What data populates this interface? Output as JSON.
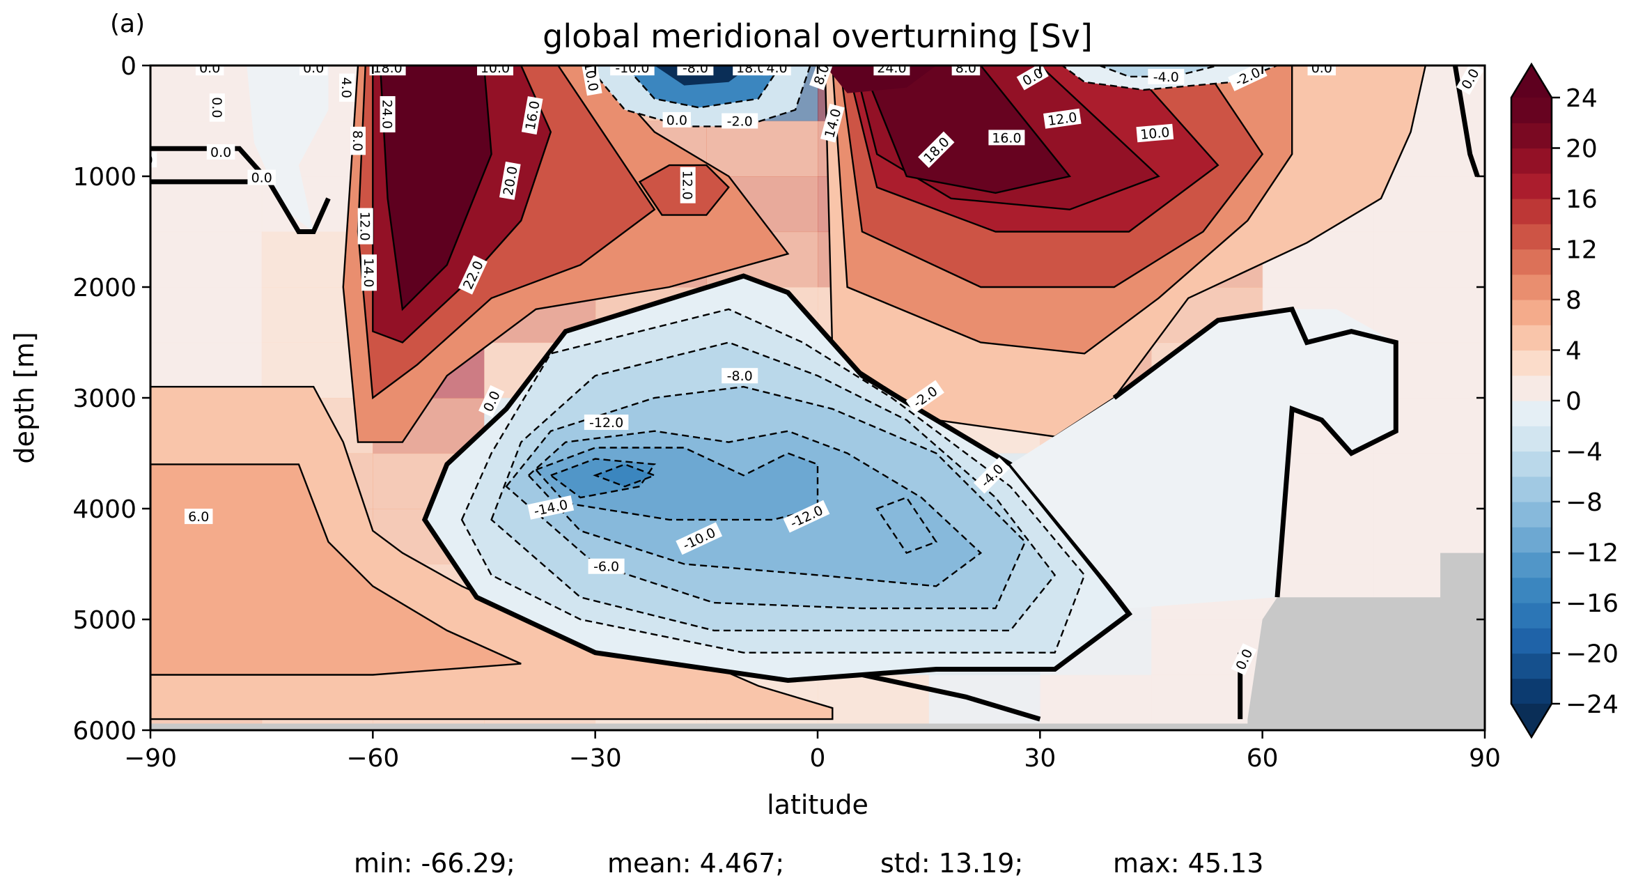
{
  "panel_label": "(a)",
  "stats": {
    "min": "min: -66.29;",
    "mean": "mean: 4.467;",
    "std": "std: 13.19;",
    "max": "max: 45.13"
  },
  "chart_data": {
    "type": "heatmap",
    "subtype": "filled-contour",
    "title": "global meridional overturning [Sv]",
    "xlabel": "latitude",
    "ylabel": "depth [m]",
    "xlim": [
      -90,
      90
    ],
    "ylim": [
      6000,
      0
    ],
    "xticks": [
      -90,
      -60,
      -30,
      0,
      30,
      60,
      90
    ],
    "xtick_labels": [
      "−90",
      "−60",
      "−30",
      "0",
      "30",
      "60",
      "90"
    ],
    "yticks": [
      0,
      1000,
      2000,
      3000,
      4000,
      5000,
      6000
    ],
    "ytick_labels": [
      "0",
      "1000",
      "2000",
      "3000",
      "4000",
      "5000",
      "6000"
    ],
    "colormap": "RdBu_r",
    "colorbar": {
      "range": [
        -24,
        24
      ],
      "step": 2,
      "extend": "both",
      "ticks": [
        24,
        20,
        16,
        12,
        8,
        4,
        0,
        -4,
        -8,
        -12,
        -16,
        -20,
        -24
      ],
      "tick_labels": [
        "24",
        "20",
        "16",
        "12",
        "8",
        "4",
        "0",
        "−4",
        "−8",
        "−12",
        "−16",
        "−20",
        "−24"
      ],
      "level_colors": [
        "#0c3b70",
        "#15508d",
        "#1f63a8",
        "#2c76b6",
        "#3b86bf",
        "#5196c8",
        "#6da8d2",
        "#87b9db",
        "#a1c9e3",
        "#bad8ea",
        "#d2e5f0",
        "#e5eff5",
        "#f7eae5",
        "#fbdcca",
        "#f9c5aa",
        "#f4ab8b",
        "#e98e6f",
        "#dc7158",
        "#cd5445",
        "#bd3736",
        "#ab1d2d",
        "#931126",
        "#7a0922",
        "#670320"
      ],
      "under_color": "#0a2e57",
      "over_color": "#5e001f"
    },
    "land_color": "#c8c8c8",
    "cells_x": [
      -90,
      -75,
      -60,
      -45,
      -30,
      -15,
      0,
      15,
      30,
      45,
      60,
      75,
      90
    ],
    "cells_depth": [
      0,
      500,
      1000,
      1500,
      2000,
      2500,
      3000,
      3500,
      4000,
      4500,
      5000,
      5500,
      6000
    ],
    "cells": [
      [
        0,
        0,
        24,
        24,
        6,
        -22,
        24,
        22,
        16,
        -2,
        0,
        0
      ],
      [
        0,
        0,
        24,
        18,
        8,
        8,
        10,
        20,
        16,
        6,
        0,
        0
      ],
      [
        0,
        0,
        24,
        16,
        12,
        10,
        12,
        20,
        18,
        10,
        0,
        0
      ],
      [
        0,
        2,
        24,
        16,
        10,
        8,
        10,
        18,
        16,
        8,
        0,
        0
      ],
      [
        0,
        2,
        22,
        10,
        6,
        4,
        4,
        10,
        12,
        6,
        0,
        0
      ],
      [
        0,
        2,
        16,
        4,
        -6,
        -6,
        2,
        6,
        8,
        4,
        0,
        0
      ],
      [
        4,
        4,
        10,
        -4,
        -10,
        -8,
        -4,
        2,
        4,
        2,
        0,
        0
      ],
      [
        6,
        6,
        6,
        -8,
        -12,
        -10,
        -10,
        -4,
        2,
        0,
        0,
        0
      ],
      [
        6,
        6,
        6,
        -6,
        -14,
        -12,
        -12,
        -6,
        0,
        0,
        0,
        0
      ],
      [
        8,
        8,
        4,
        -2,
        -10,
        -10,
        -8,
        -6,
        -2,
        0,
        0,
        0
      ],
      [
        8,
        8,
        4,
        2,
        -4,
        -6,
        -4,
        -4,
        -2,
        0,
        0,
        0
      ],
      [
        6,
        4,
        4,
        4,
        2,
        2,
        2,
        -2,
        0,
        0,
        0,
        0
      ]
    ],
    "contour_labels": [
      {
        "x": -82.0,
        "y": 20,
        "text": "0.0",
        "angle": 0
      },
      {
        "x": -68.0,
        "y": 20,
        "text": "0.0",
        "angle": 0
      },
      {
        "x": -63.5,
        "y": 200,
        "text": "4.0",
        "angle": 90
      },
      {
        "x": -58.0,
        "y": 20,
        "text": "18.0",
        "angle": 0
      },
      {
        "x": -43.5,
        "y": 20,
        "text": "10.0",
        "angle": 0
      },
      {
        "x": -90.5,
        "y": 850,
        "text": ".0",
        "angle": 0
      },
      {
        "x": -80.5,
        "y": 780,
        "text": "0.0",
        "angle": 0
      },
      {
        "x": -75.0,
        "y": 1010,
        "text": "0.0",
        "angle": 0
      },
      {
        "x": -81.0,
        "y": 380,
        "text": "0.0",
        "angle": 90
      },
      {
        "x": -58.0,
        "y": 440,
        "text": "24.0",
        "angle": 90
      },
      {
        "x": -62.0,
        "y": 680,
        "text": "8.0",
        "angle": 90
      },
      {
        "x": -61.0,
        "y": 1450,
        "text": "12.0",
        "angle": 90
      },
      {
        "x": -60.5,
        "y": 1870,
        "text": "14.0",
        "angle": 90
      },
      {
        "x": -38.5,
        "y": 450,
        "text": "16.0",
        "angle": -80
      },
      {
        "x": -41.5,
        "y": 1040,
        "text": "20.0",
        "angle": -80
      },
      {
        "x": -46.5,
        "y": 1890,
        "text": "22.0",
        "angle": -65
      },
      {
        "x": -30.5,
        "y": 100,
        "text": "10.0",
        "angle": 80
      },
      {
        "x": -25.0,
        "y": 20,
        "text": "-10.0",
        "angle": 0
      },
      {
        "x": -16.5,
        "y": 20,
        "text": "-8.0",
        "angle": 0
      },
      {
        "x": -9.0,
        "y": 20,
        "text": "18.0",
        "angle": 0
      },
      {
        "x": -5.5,
        "y": 20,
        "text": "4.0",
        "angle": 0
      },
      {
        "x": -19.0,
        "y": 490,
        "text": "0.0",
        "angle": 0
      },
      {
        "x": -10.5,
        "y": 500,
        "text": "-2.0",
        "angle": 0
      },
      {
        "x": 0.5,
        "y": 80,
        "text": "8.0",
        "angle": -70
      },
      {
        "x": 2.0,
        "y": 520,
        "text": "14.0",
        "angle": -75
      },
      {
        "x": -17.5,
        "y": 1080,
        "text": "12.0",
        "angle": 90
      },
      {
        "x": 10.0,
        "y": 20,
        "text": "24.0",
        "angle": 0
      },
      {
        "x": 20.0,
        "y": 20,
        "text": "8.0",
        "angle": 0
      },
      {
        "x": 29.0,
        "y": 100,
        "text": "0.0",
        "angle": -30
      },
      {
        "x": 47.0,
        "y": 100,
        "text": "-4.0",
        "angle": 0
      },
      {
        "x": 58.0,
        "y": 100,
        "text": "-2.0",
        "angle": -25
      },
      {
        "x": 68.0,
        "y": 20,
        "text": "0.0",
        "angle": 0
      },
      {
        "x": 88.0,
        "y": 120,
        "text": "0.0",
        "angle": -60
      },
      {
        "x": 16.0,
        "y": 760,
        "text": "18.0",
        "angle": -45
      },
      {
        "x": 25.5,
        "y": 650,
        "text": "16.0",
        "angle": 0
      },
      {
        "x": 33.0,
        "y": 480,
        "text": "12.0",
        "angle": -8
      },
      {
        "x": 45.5,
        "y": 610,
        "text": "10.0",
        "angle": -5
      },
      {
        "x": -10.5,
        "y": 2800,
        "text": "-8.0",
        "angle": 0
      },
      {
        "x": -28.5,
        "y": 3220,
        "text": "-12.0",
        "angle": 0
      },
      {
        "x": -44.0,
        "y": 3030,
        "text": "0.0",
        "angle": -65
      },
      {
        "x": 14.5,
        "y": 2990,
        "text": "-2.0",
        "angle": -35
      },
      {
        "x": 23.5,
        "y": 3700,
        "text": "-4.0",
        "angle": -45
      },
      {
        "x": -36.0,
        "y": 3990,
        "text": "-14.0",
        "angle": -12
      },
      {
        "x": -1.5,
        "y": 4070,
        "text": "-12.0",
        "angle": -25
      },
      {
        "x": -16.0,
        "y": 4270,
        "text": "-10.0",
        "angle": -25
      },
      {
        "x": -28.5,
        "y": 4520,
        "text": "-6.0",
        "angle": 0
      },
      {
        "x": -83.5,
        "y": 4070,
        "text": "6.0",
        "angle": 0
      },
      {
        "x": 57.5,
        "y": 5360,
        "text": "0.0",
        "angle": -65
      }
    ]
  }
}
